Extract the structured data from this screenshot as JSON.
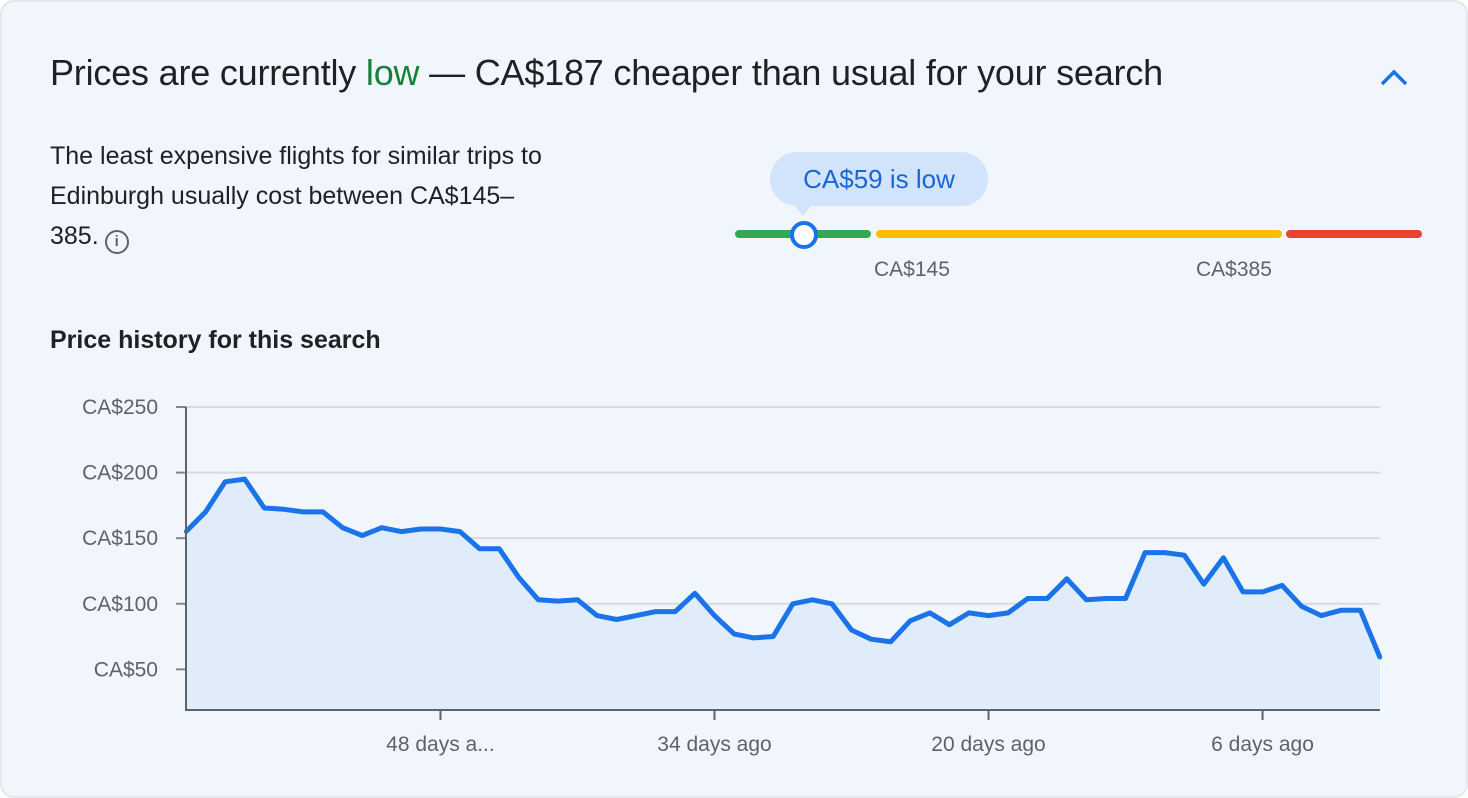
{
  "header": {
    "prefix": "Prices are currently ",
    "level": "low",
    "suffix": " — CA$187 cheaper than usual for your search",
    "collapse_icon": "chevron-up-icon"
  },
  "summary": {
    "text": "The least expensive flights for similar trips to Edinburgh usually cost between CA$145–385.",
    "info_icon": "info-icon",
    "info_glyph": "i"
  },
  "price_range": {
    "current_label": "CA$59 is low",
    "current": 59,
    "low_threshold_label": "CA$145",
    "high_threshold_label": "CA$385",
    "colors": {
      "low": "#34a853",
      "typical": "#fbbc04",
      "high": "#ea4335",
      "marker": "#1a73e8"
    }
  },
  "history": {
    "title": "Price history for this search"
  },
  "chart_data": {
    "type": "area",
    "title": "Price history for this search",
    "x_unit": "days ago",
    "x": [
      61,
      60,
      59,
      58,
      57,
      56,
      55,
      54,
      53,
      52,
      51,
      50,
      49,
      48,
      47,
      46,
      45,
      44,
      43,
      42,
      41,
      40,
      39,
      38,
      37,
      36,
      35,
      34,
      33,
      32,
      31,
      30,
      29,
      28,
      27,
      26,
      25,
      24,
      23,
      22,
      21,
      20,
      19,
      18,
      17,
      16,
      15,
      14,
      13,
      12,
      11,
      10,
      9,
      8,
      7,
      6,
      5,
      4,
      3,
      2,
      1,
      0
    ],
    "values": [
      155,
      170,
      193,
      195,
      173,
      172,
      170,
      170,
      158,
      152,
      158,
      155,
      157,
      157,
      155,
      142,
      142,
      120,
      103,
      102,
      103,
      91,
      88,
      91,
      94,
      94,
      108,
      91,
      77,
      74,
      75,
      100,
      103,
      100,
      80,
      73,
      71,
      87,
      93,
      84,
      93,
      91,
      93,
      104,
      104,
      119,
      103,
      104,
      104,
      139,
      139,
      137,
      115,
      135,
      109,
      109,
      114,
      98,
      91,
      95,
      95,
      59
    ],
    "ylim": [
      19,
      250
    ],
    "xlim": [
      61,
      0
    ],
    "y_ticks": [
      {
        "value": 250,
        "label": "CA$250"
      },
      {
        "value": 200,
        "label": "CA$200"
      },
      {
        "value": 150,
        "label": "CA$150"
      },
      {
        "value": 100,
        "label": "CA$100"
      },
      {
        "value": 50,
        "label": "CA$50"
      }
    ],
    "x_ticks": [
      {
        "value": 48,
        "label": "48 days a..."
      },
      {
        "value": 34,
        "label": "34 days ago"
      },
      {
        "value": 20,
        "label": "20 days ago"
      },
      {
        "value": 6,
        "label": "6 days ago"
      }
    ],
    "grid": true,
    "line_color": "#1a73e8",
    "fill_color": "#e1ecfb"
  }
}
